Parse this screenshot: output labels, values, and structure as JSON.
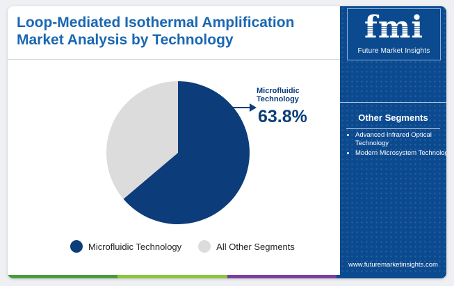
{
  "header": {
    "title": "Loop-Mediated Isothermal Amplification Market Analysis by Technology"
  },
  "brand": {
    "logo_text": "fmi",
    "logo_subtitle": "Future Market Insights",
    "website": "www.futuremarketinsights.com"
  },
  "sidebar": {
    "heading": "Other Segments",
    "items": [
      {
        "label": "Advanced Infrared Optical Technology"
      },
      {
        "label": "Modern Microsystem Technology"
      }
    ]
  },
  "callout": {
    "label": "Microfluidic Technology",
    "value": "63.8%"
  },
  "colors": {
    "primary": "#0c3d7a",
    "secondary": "#dcdcdc",
    "sidebar": "#0c4a8f",
    "title": "#1a67b3",
    "footer": [
      "#4a9b3a",
      "#8cc63f",
      "#7b3fa0",
      "#0c4a8f"
    ]
  },
  "chart_data": {
    "type": "pie",
    "title": "Loop-Mediated Isothermal Amplification Market Analysis by Technology",
    "slices": [
      {
        "label": "Microfluidic Technology",
        "value": 63.8,
        "color": "#0c3d7a"
      },
      {
        "label": "All Other Segments",
        "value": 36.2,
        "color": "#dcdcdc"
      }
    ],
    "start_angle_deg": 0,
    "direction": "clockwise",
    "legend_position": "bottom"
  }
}
